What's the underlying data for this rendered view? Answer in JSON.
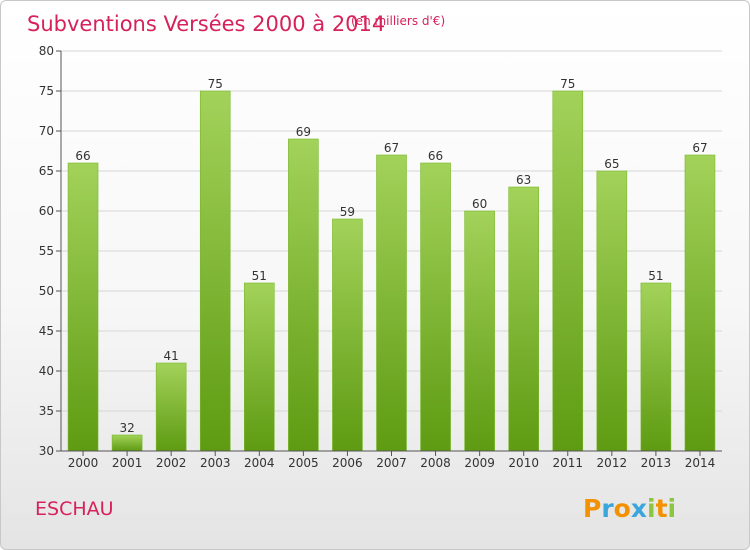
{
  "chart_data": {
    "type": "bar",
    "title": "Subventions Versées 2000 à 2014",
    "subtitle": "(en milliers d'€)",
    "categories": [
      "2000",
      "2001",
      "2002",
      "2003",
      "2004",
      "2005",
      "2006",
      "2007",
      "2008",
      "2009",
      "2010",
      "2011",
      "2012",
      "2013",
      "2014"
    ],
    "values": [
      66,
      32,
      41,
      75,
      51,
      69,
      59,
      67,
      66,
      60,
      63,
      75,
      65,
      51,
      67
    ],
    "ylim": [
      30,
      80
    ],
    "yticks": [
      30,
      35,
      40,
      45,
      50,
      55,
      60,
      65,
      70,
      75,
      80
    ],
    "grid": true,
    "bar_color_top": "#a3d25a",
    "bar_color_bottom": "#5e9b12",
    "xlabel": "",
    "ylabel": ""
  },
  "commune": "ESCHAU",
  "logo": {
    "letters": [
      "P",
      "r",
      "o",
      "x",
      "i",
      "t",
      "i"
    ],
    "colors": [
      "#f39200",
      "#3aa6dc",
      "#f39200",
      "#3aa6dc",
      "#8cc63f",
      "#f39200",
      "#8cc63f"
    ]
  },
  "colors": {
    "title": "#d6215b",
    "axis": "#555555",
    "grid": "#d6d6d6"
  }
}
